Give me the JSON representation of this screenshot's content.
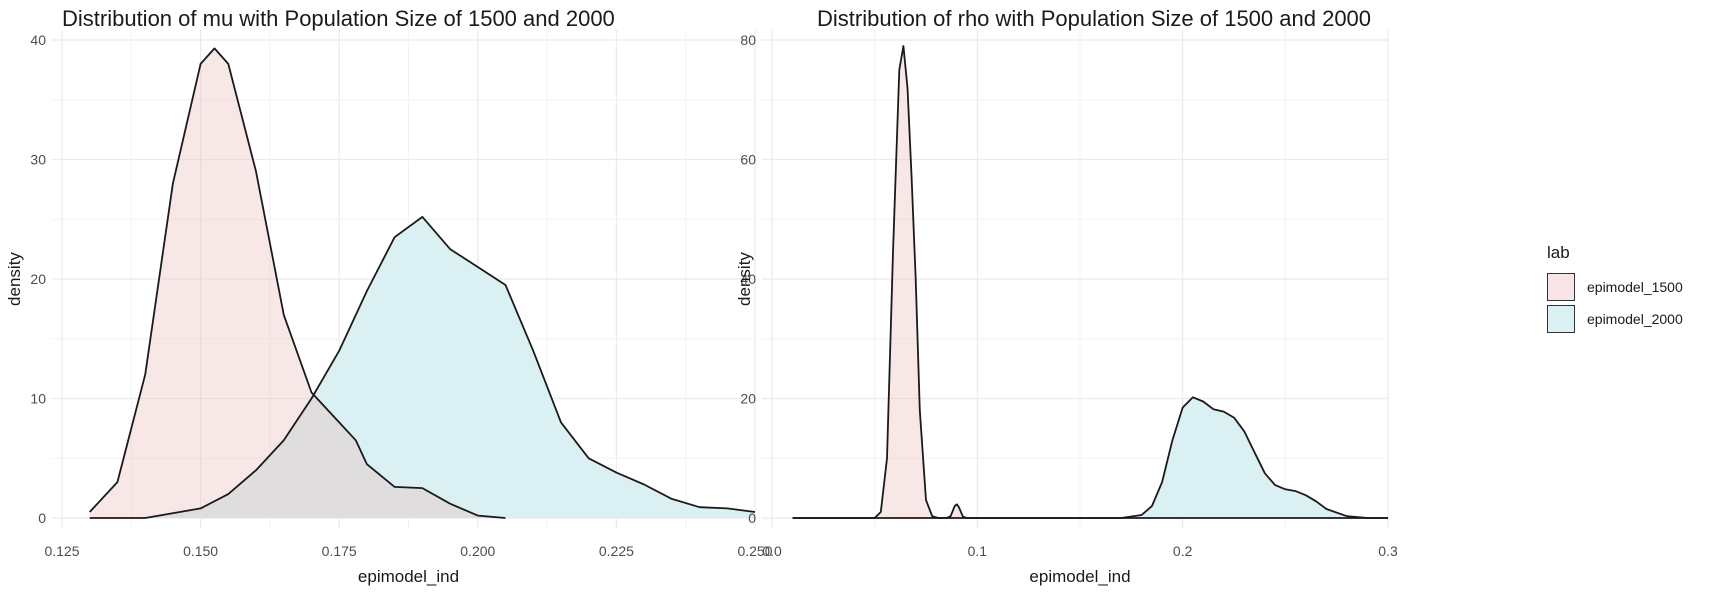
{
  "colors": {
    "fill_1500": "#f8e4e4",
    "fill_2000": "#dbf0f2",
    "overlap": "#dadddd",
    "line": "#1a1a1a",
    "grid": "#ebebeb"
  },
  "legend": {
    "title": "lab",
    "items": [
      "epimodel_1500",
      "epimodel_2000"
    ]
  },
  "chart_data": [
    {
      "type": "area",
      "title": "Distribution of mu with Population Size of 1500 and 2000",
      "xlabel": "epimodel_ind",
      "ylabel": "density",
      "xlim": [
        0.125,
        0.25
      ],
      "ylim": [
        0,
        40
      ],
      "xticks": [
        0.125,
        0.15,
        0.175,
        0.2,
        0.225,
        0.25
      ],
      "xtick_labels": [
        "0.125",
        "0.150",
        "0.175",
        "0.200",
        "0.225",
        "0.250"
      ],
      "yticks": [
        0,
        10,
        20,
        30,
        40
      ],
      "ytick_labels": [
        "0",
        "10",
        "20",
        "30",
        "40"
      ],
      "series": [
        {
          "name": "epimodel_1500",
          "x": [
            0.13,
            0.135,
            0.14,
            0.145,
            0.15,
            0.1525,
            0.155,
            0.16,
            0.165,
            0.17,
            0.175,
            0.178,
            0.18,
            0.185,
            0.19,
            0.195,
            0.2,
            0.205
          ],
          "y": [
            0.5,
            3,
            12,
            28,
            38,
            39.3,
            38,
            29,
            17,
            10.5,
            8,
            6.5,
            4.5,
            2.6,
            2.5,
            1.2,
            0.2,
            0
          ]
        },
        {
          "name": "epimodel_2000",
          "x": [
            0.13,
            0.14,
            0.15,
            0.155,
            0.16,
            0.165,
            0.17,
            0.175,
            0.18,
            0.185,
            0.19,
            0.195,
            0.2,
            0.205,
            0.21,
            0.215,
            0.22,
            0.225,
            0.23,
            0.235,
            0.24,
            0.245,
            0.25
          ],
          "y": [
            0,
            0,
            0.8,
            2,
            4,
            6.5,
            10,
            14,
            19,
            23.5,
            25.2,
            22.5,
            21,
            19.5,
            14,
            8,
            5,
            3.8,
            2.8,
            1.6,
            0.9,
            0.8,
            0.5
          ]
        }
      ]
    },
    {
      "type": "area",
      "title": "Distribution of rho with Population Size of 1500 and 2000",
      "xlabel": "epimodel_ind",
      "ylabel": "density",
      "xlim": [
        0,
        0.3
      ],
      "ylim": [
        0,
        80
      ],
      "xticks": [
        0,
        0.1,
        0.2,
        0.3
      ],
      "xtick_labels": [
        "0.0",
        "0.1",
        "0.2",
        "0.3"
      ],
      "yticks": [
        0,
        20,
        40,
        60,
        80
      ],
      "ytick_labels": [
        "0",
        "20",
        "40",
        "60",
        "80"
      ],
      "series": [
        {
          "name": "epimodel_1500",
          "x": [
            0.01,
            0.05,
            0.053,
            0.056,
            0.059,
            0.062,
            0.064,
            0.066,
            0.068,
            0.07,
            0.072,
            0.075,
            0.078,
            0.081,
            0.085,
            0.087,
            0.089,
            0.09,
            0.091,
            0.093,
            0.095,
            0.1,
            0.3
          ],
          "y": [
            0,
            0,
            1,
            10,
            45,
            75,
            79,
            72,
            57,
            40,
            18,
            3,
            0.3,
            0,
            0,
            0.3,
            2,
            2.3,
            1.8,
            0.2,
            0,
            0,
            0
          ]
        },
        {
          "name": "epimodel_2000",
          "x": [
            0.01,
            0.17,
            0.18,
            0.185,
            0.19,
            0.195,
            0.2,
            0.205,
            0.21,
            0.215,
            0.22,
            0.225,
            0.23,
            0.235,
            0.24,
            0.245,
            0.25,
            0.255,
            0.26,
            0.265,
            0.27,
            0.28,
            0.29,
            0.3
          ],
          "y": [
            0,
            0,
            0.5,
            2,
            6,
            13,
            18.5,
            20.2,
            19.5,
            18.2,
            17.8,
            16.8,
            14.5,
            11,
            7.5,
            5.5,
            4.8,
            4.5,
            3.8,
            2.8,
            1.5,
            0.3,
            0,
            0
          ]
        }
      ]
    }
  ]
}
